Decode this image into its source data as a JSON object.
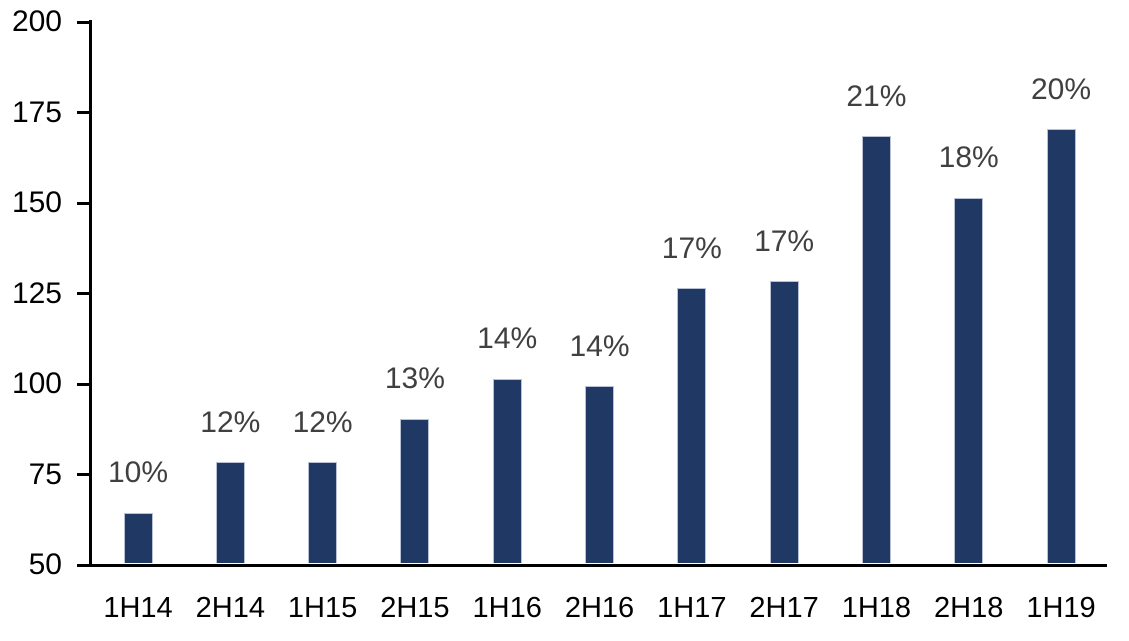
{
  "chart_data": {
    "type": "bar",
    "title": "",
    "xlabel": "",
    "ylabel": "",
    "categories": [
      "1H14",
      "2H14",
      "1H15",
      "2H15",
      "1H16",
      "2H16",
      "1H17",
      "2H17",
      "1H18",
      "2H18",
      "1H19"
    ],
    "values": [
      64,
      78,
      78,
      90,
      101,
      99,
      126,
      128,
      168,
      151,
      170
    ],
    "bar_labels": [
      "10%",
      "12%",
      "12%",
      "13%",
      "14%",
      "14%",
      "17%",
      "17%",
      "21%",
      "18%",
      "20%"
    ],
    "yticks": [
      50,
      75,
      100,
      125,
      150,
      175,
      200
    ],
    "ylim": [
      50,
      200
    ],
    "grid": false,
    "legend": "none",
    "colors": {
      "bar_fill": "#1f3864",
      "bar_border": "#b9c2d4",
      "bar_label": "#404040",
      "axis_line": "#000000",
      "tick_label": "#000000",
      "background": "#ffffff"
    }
  }
}
